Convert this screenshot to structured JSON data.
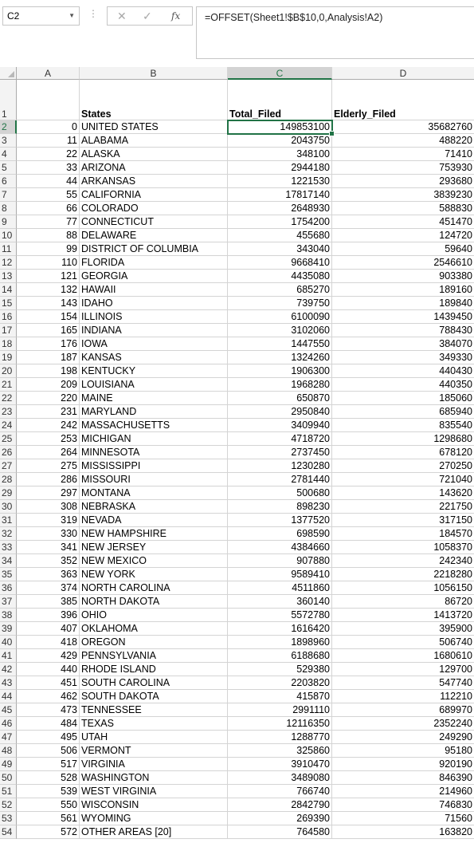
{
  "formula_bar": {
    "name_box": "C2",
    "formula": "=OFFSET(Sheet1!$B$10,0,Analysis!A2)"
  },
  "columns": [
    "A",
    "B",
    "C",
    "D"
  ],
  "active_column": "C",
  "active_row": 2,
  "header_row": {
    "row": 1,
    "a": "",
    "b": "States",
    "c": "Total_Filed",
    "d": "Elderly_Filed"
  },
  "rows": [
    {
      "row": 2,
      "a": "0",
      "b": "UNITED STATES",
      "c": "149853100",
      "d": "35682760"
    },
    {
      "row": 3,
      "a": "11",
      "b": "ALABAMA",
      "c": "2043750",
      "d": "488220"
    },
    {
      "row": 4,
      "a": "22",
      "b": "ALASKA",
      "c": "348100",
      "d": "71410"
    },
    {
      "row": 5,
      "a": "33",
      "b": "ARIZONA",
      "c": "2944180",
      "d": "753930"
    },
    {
      "row": 6,
      "a": "44",
      "b": "ARKANSAS",
      "c": "1221530",
      "d": "293680"
    },
    {
      "row": 7,
      "a": "55",
      "b": "CALIFORNIA",
      "c": "17817140",
      "d": "3839230"
    },
    {
      "row": 8,
      "a": "66",
      "b": "COLORADO",
      "c": "2648930",
      "d": "588830"
    },
    {
      "row": 9,
      "a": "77",
      "b": "CONNECTICUT",
      "c": "1754200",
      "d": "451470"
    },
    {
      "row": 10,
      "a": "88",
      "b": "DELAWARE",
      "c": "455680",
      "d": "124720"
    },
    {
      "row": 11,
      "a": "99",
      "b": "DISTRICT OF COLUMBIA",
      "c": "343040",
      "d": "59640"
    },
    {
      "row": 12,
      "a": "110",
      "b": "FLORIDA",
      "c": "9668410",
      "d": "2546610"
    },
    {
      "row": 13,
      "a": "121",
      "b": "GEORGIA",
      "c": "4435080",
      "d": "903380"
    },
    {
      "row": 14,
      "a": "132",
      "b": "HAWAII",
      "c": "685270",
      "d": "189160"
    },
    {
      "row": 15,
      "a": "143",
      "b": "IDAHO",
      "c": "739750",
      "d": "189840"
    },
    {
      "row": 16,
      "a": "154",
      "b": "ILLINOIS",
      "c": "6100090",
      "d": "1439450"
    },
    {
      "row": 17,
      "a": "165",
      "b": "INDIANA",
      "c": "3102060",
      "d": "788430"
    },
    {
      "row": 18,
      "a": "176",
      "b": "IOWA",
      "c": "1447550",
      "d": "384070"
    },
    {
      "row": 19,
      "a": "187",
      "b": "KANSAS",
      "c": "1324260",
      "d": "349330"
    },
    {
      "row": 20,
      "a": "198",
      "b": "KENTUCKY",
      "c": "1906300",
      "d": "440430"
    },
    {
      "row": 21,
      "a": "209",
      "b": "LOUISIANA",
      "c": "1968280",
      "d": "440350"
    },
    {
      "row": 22,
      "a": "220",
      "b": "MAINE",
      "c": "650870",
      "d": "185060"
    },
    {
      "row": 23,
      "a": "231",
      "b": "MARYLAND",
      "c": "2950840",
      "d": "685940"
    },
    {
      "row": 24,
      "a": "242",
      "b": "MASSACHUSETTS",
      "c": "3409940",
      "d": "835540"
    },
    {
      "row": 25,
      "a": "253",
      "b": "MICHIGAN",
      "c": "4718720",
      "d": "1298680"
    },
    {
      "row": 26,
      "a": "264",
      "b": "MINNESOTA",
      "c": "2737450",
      "d": "678120"
    },
    {
      "row": 27,
      "a": "275",
      "b": "MISSISSIPPI",
      "c": "1230280",
      "d": "270250"
    },
    {
      "row": 28,
      "a": "286",
      "b": "MISSOURI",
      "c": "2781440",
      "d": "721040"
    },
    {
      "row": 29,
      "a": "297",
      "b": "MONTANA",
      "c": "500680",
      "d": "143620"
    },
    {
      "row": 30,
      "a": "308",
      "b": "NEBRASKA",
      "c": "898230",
      "d": "221750"
    },
    {
      "row": 31,
      "a": "319",
      "b": "NEVADA",
      "c": "1377520",
      "d": "317150"
    },
    {
      "row": 32,
      "a": "330",
      "b": "NEW HAMPSHIRE",
      "c": "698590",
      "d": "184570"
    },
    {
      "row": 33,
      "a": "341",
      "b": "NEW JERSEY",
      "c": "4384660",
      "d": "1058370"
    },
    {
      "row": 34,
      "a": "352",
      "b": "NEW MEXICO",
      "c": "907880",
      "d": "242340"
    },
    {
      "row": 35,
      "a": "363",
      "b": "NEW YORK",
      "c": "9589410",
      "d": "2218280"
    },
    {
      "row": 36,
      "a": "374",
      "b": "NORTH CAROLINA",
      "c": "4511860",
      "d": "1056150"
    },
    {
      "row": 37,
      "a": "385",
      "b": "NORTH DAKOTA",
      "c": "360140",
      "d": "86720"
    },
    {
      "row": 38,
      "a": "396",
      "b": "OHIO",
      "c": "5572780",
      "d": "1413720"
    },
    {
      "row": 39,
      "a": "407",
      "b": "OKLAHOMA",
      "c": "1616420",
      "d": "395900"
    },
    {
      "row": 40,
      "a": "418",
      "b": "OREGON",
      "c": "1898960",
      "d": "506740"
    },
    {
      "row": 41,
      "a": "429",
      "b": "PENNSYLVANIA",
      "c": "6188680",
      "d": "1680610"
    },
    {
      "row": 42,
      "a": "440",
      "b": "RHODE ISLAND",
      "c": "529380",
      "d": "129700"
    },
    {
      "row": 43,
      "a": "451",
      "b": "SOUTH CAROLINA",
      "c": "2203820",
      "d": "547740"
    },
    {
      "row": 44,
      "a": "462",
      "b": "SOUTH DAKOTA",
      "c": "415870",
      "d": "112210"
    },
    {
      "row": 45,
      "a": "473",
      "b": "TENNESSEE",
      "c": "2991110",
      "d": "689970"
    },
    {
      "row": 46,
      "a": "484",
      "b": "TEXAS",
      "c": "12116350",
      "d": "2352240"
    },
    {
      "row": 47,
      "a": "495",
      "b": "UTAH",
      "c": "1288770",
      "d": "249290"
    },
    {
      "row": 48,
      "a": "506",
      "b": "VERMONT",
      "c": "325860",
      "d": "95180"
    },
    {
      "row": 49,
      "a": "517",
      "b": "VIRGINIA",
      "c": "3910470",
      "d": "920190"
    },
    {
      "row": 50,
      "a": "528",
      "b": "WASHINGTON",
      "c": "3489080",
      "d": "846390"
    },
    {
      "row": 51,
      "a": "539",
      "b": "WEST VIRGINIA",
      "c": "766740",
      "d": "214960"
    },
    {
      "row": 52,
      "a": "550",
      "b": "WISCONSIN",
      "c": "2842790",
      "d": "746830"
    },
    {
      "row": 53,
      "a": "561",
      "b": "WYOMING",
      "c": "269390",
      "d": "71560"
    },
    {
      "row": 54,
      "a": "572",
      "b": "OTHER AREAS [20]",
      "c": "764580",
      "d": "163820"
    }
  ]
}
